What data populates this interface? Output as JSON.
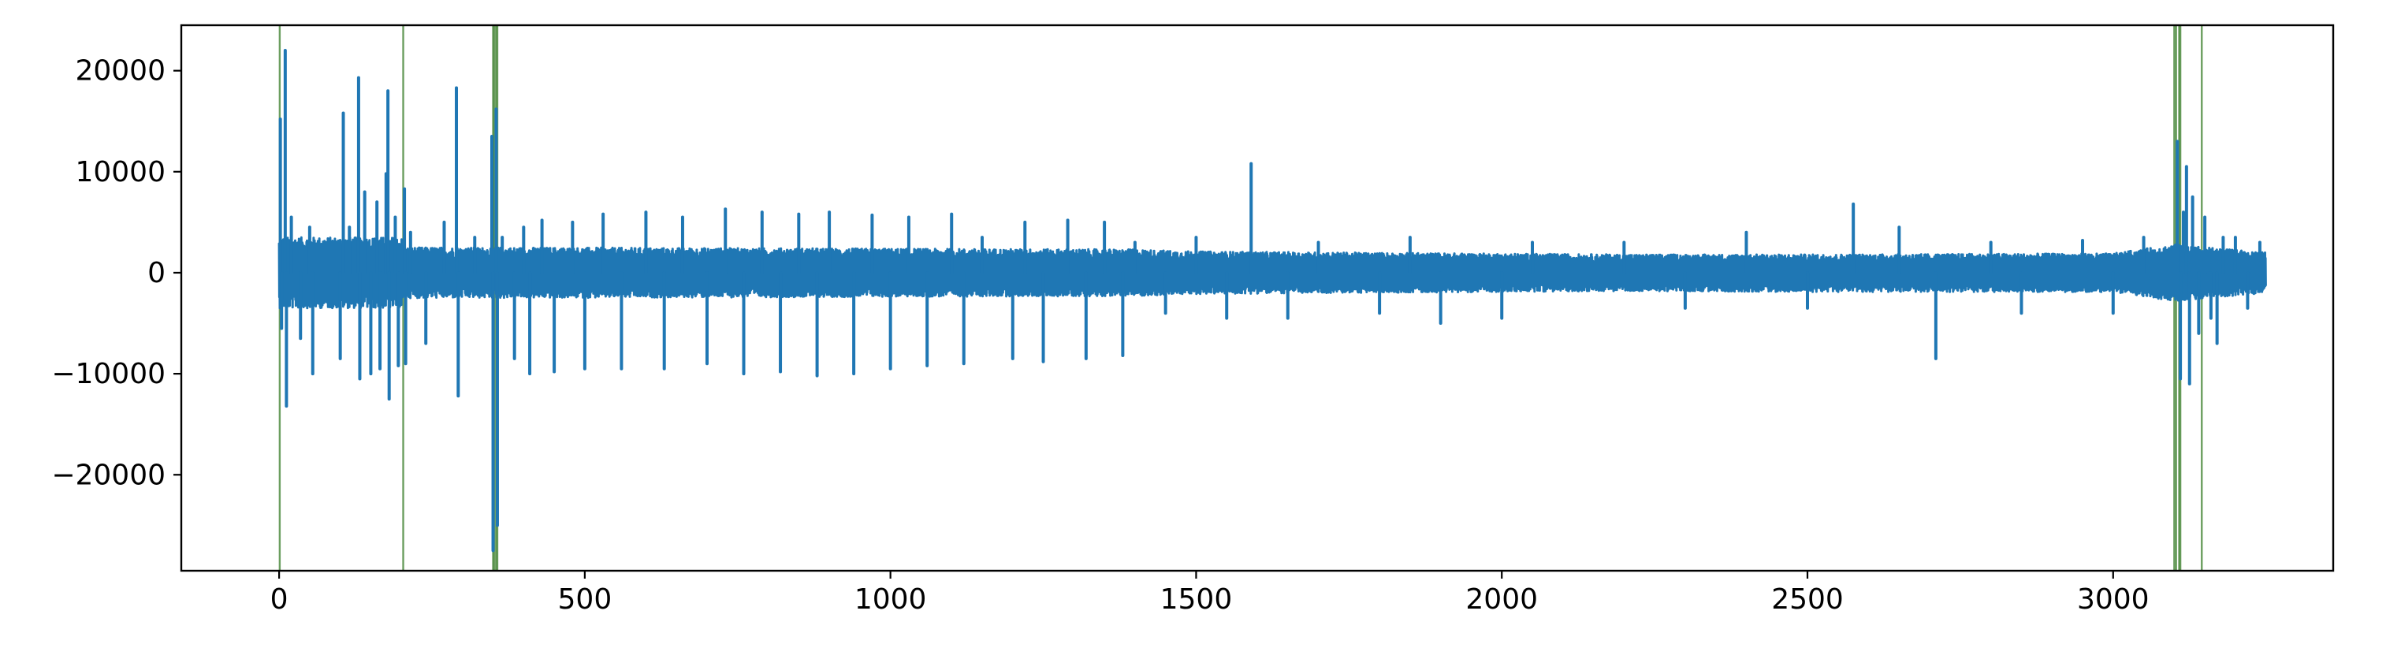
{
  "chart_data": {
    "type": "line",
    "title": "",
    "xlabel": "",
    "ylabel": "",
    "xlim": [
      -160,
      3360
    ],
    "ylim": [
      -29500,
      24500
    ],
    "grid": false,
    "legend": "none",
    "x_ticks": [
      0,
      500,
      1000,
      1500,
      2000,
      2500,
      3000
    ],
    "x_tick_labels": [
      "0",
      "500",
      "1000",
      "1500",
      "2000",
      "2500",
      "3000"
    ],
    "y_ticks": [
      20000,
      10000,
      0,
      -10000,
      -20000
    ],
    "y_tick_labels": [
      "20000",
      "10000",
      "0",
      "−10000",
      "−20000"
    ],
    "x_range": [
      0,
      3250
    ],
    "series": [
      {
        "color": "#1f77b4",
        "envelope": [
          {
            "x": 0,
            "upper": 3500,
            "lower": -3500
          },
          {
            "x": 200,
            "upper": 3500,
            "lower": -3500
          },
          {
            "x": 205,
            "upper": 2500,
            "lower": -2500
          },
          {
            "x": 380,
            "upper": 2500,
            "lower": -2500
          },
          {
            "x": 1400,
            "upper": 2300,
            "lower": -2300
          },
          {
            "x": 1500,
            "upper": 2100,
            "lower": -2100
          },
          {
            "x": 2200,
            "upper": 1800,
            "lower": -1800
          },
          {
            "x": 2500,
            "upper": 1800,
            "lower": -1900
          },
          {
            "x": 3000,
            "upper": 1900,
            "lower": -1900
          },
          {
            "x": 3100,
            "upper": 2800,
            "lower": -2800
          },
          {
            "x": 3150,
            "upper": 2500,
            "lower": -2500
          },
          {
            "x": 3250,
            "upper": 2000,
            "lower": -2000
          }
        ],
        "spikes": [
          {
            "x": 2,
            "value": 15200
          },
          {
            "x": 4,
            "value": -5500
          },
          {
            "x": 10,
            "value": 22000
          },
          {
            "x": 12,
            "value": -13200
          },
          {
            "x": 20,
            "value": 5500
          },
          {
            "x": 35,
            "value": -6500
          },
          {
            "x": 50,
            "value": 4500
          },
          {
            "x": 55,
            "value": -10000
          },
          {
            "x": 100,
            "value": -8500
          },
          {
            "x": 105,
            "value": 15800
          },
          {
            "x": 115,
            "value": 4500
          },
          {
            "x": 130,
            "value": 19300
          },
          {
            "x": 132,
            "value": -10500
          },
          {
            "x": 140,
            "value": 8000
          },
          {
            "x": 150,
            "value": -10000
          },
          {
            "x": 160,
            "value": 7000
          },
          {
            "x": 165,
            "value": -9500
          },
          {
            "x": 175,
            "value": 9800
          },
          {
            "x": 178,
            "value": 18000
          },
          {
            "x": 180,
            "value": -12500
          },
          {
            "x": 190,
            "value": 5500
          },
          {
            "x": 195,
            "value": -9200
          },
          {
            "x": 205,
            "value": 8300
          },
          {
            "x": 207,
            "value": -9000
          },
          {
            "x": 215,
            "value": 4000
          },
          {
            "x": 240,
            "value": -7000
          },
          {
            "x": 270,
            "value": 5000
          },
          {
            "x": 290,
            "value": 18300
          },
          {
            "x": 293,
            "value": -12200
          },
          {
            "x": 320,
            "value": 3500
          },
          {
            "x": 348,
            "value": 13500
          },
          {
            "x": 350,
            "value": -27500
          },
          {
            "x": 355,
            "value": 16200
          },
          {
            "x": 357,
            "value": -25000
          },
          {
            "x": 365,
            "value": 3500
          },
          {
            "x": 385,
            "value": -8500
          },
          {
            "x": 400,
            "value": 4500
          },
          {
            "x": 410,
            "value": -10000
          },
          {
            "x": 430,
            "value": 5200
          },
          {
            "x": 450,
            "value": -9800
          },
          {
            "x": 480,
            "value": 5000
          },
          {
            "x": 500,
            "value": -9500
          },
          {
            "x": 530,
            "value": 5800
          },
          {
            "x": 560,
            "value": -9500
          },
          {
            "x": 600,
            "value": 6000
          },
          {
            "x": 630,
            "value": -9500
          },
          {
            "x": 660,
            "value": 5500
          },
          {
            "x": 700,
            "value": -9000
          },
          {
            "x": 730,
            "value": 6300
          },
          {
            "x": 760,
            "value": -10000
          },
          {
            "x": 790,
            "value": 6000
          },
          {
            "x": 820,
            "value": -9800
          },
          {
            "x": 850,
            "value": 5800
          },
          {
            "x": 880,
            "value": -10200
          },
          {
            "x": 900,
            "value": 6000
          },
          {
            "x": 940,
            "value": -10000
          },
          {
            "x": 970,
            "value": 5700
          },
          {
            "x": 1000,
            "value": -9500
          },
          {
            "x": 1030,
            "value": 5500
          },
          {
            "x": 1060,
            "value": -9200
          },
          {
            "x": 1100,
            "value": 5800
          },
          {
            "x": 1120,
            "value": -9000
          },
          {
            "x": 1150,
            "value": 3500
          },
          {
            "x": 1200,
            "value": -8500
          },
          {
            "x": 1220,
            "value": 5000
          },
          {
            "x": 1250,
            "value": -8800
          },
          {
            "x": 1290,
            "value": 5200
          },
          {
            "x": 1320,
            "value": -8500
          },
          {
            "x": 1350,
            "value": 5000
          },
          {
            "x": 1380,
            "value": -8200
          },
          {
            "x": 1400,
            "value": 3000
          },
          {
            "x": 1450,
            "value": -4000
          },
          {
            "x": 1500,
            "value": 3500
          },
          {
            "x": 1550,
            "value": -4500
          },
          {
            "x": 1590,
            "value": 10800
          },
          {
            "x": 1650,
            "value": -4500
          },
          {
            "x": 1700,
            "value": 3000
          },
          {
            "x": 1800,
            "value": -4000
          },
          {
            "x": 1850,
            "value": 3500
          },
          {
            "x": 1900,
            "value": -5000
          },
          {
            "x": 2000,
            "value": -4500
          },
          {
            "x": 2050,
            "value": 3000
          },
          {
            "x": 2200,
            "value": 3000
          },
          {
            "x": 2300,
            "value": -3500
          },
          {
            "x": 2400,
            "value": 4000
          },
          {
            "x": 2500,
            "value": -3500
          },
          {
            "x": 2575,
            "value": 6800
          },
          {
            "x": 2650,
            "value": 4500
          },
          {
            "x": 2710,
            "value": -8500
          },
          {
            "x": 2800,
            "value": 3000
          },
          {
            "x": 2850,
            "value": -4000
          },
          {
            "x": 2950,
            "value": 3200
          },
          {
            "x": 3000,
            "value": -4000
          },
          {
            "x": 3050,
            "value": 3500
          },
          {
            "x": 3105,
            "value": 13000
          },
          {
            "x": 3110,
            "value": -10500
          },
          {
            "x": 3115,
            "value": 6000
          },
          {
            "x": 3120,
            "value": 10500
          },
          {
            "x": 3125,
            "value": -11000
          },
          {
            "x": 3130,
            "value": 7500
          },
          {
            "x": 3140,
            "value": -6000
          },
          {
            "x": 3150,
            "value": 5500
          },
          {
            "x": 3160,
            "value": -4500
          },
          {
            "x": 3170,
            "value": -7000
          },
          {
            "x": 3180,
            "value": 3500
          },
          {
            "x": 3200,
            "value": 3500
          },
          {
            "x": 3220,
            "value": -3500
          },
          {
            "x": 3240,
            "value": 3000
          }
        ]
      }
    ],
    "vertical_lines": {
      "color": "#3a7d2a",
      "x": [
        1,
        203,
        350,
        352,
        355,
        357,
        3100,
        3103,
        3108,
        3110,
        3145
      ]
    }
  }
}
